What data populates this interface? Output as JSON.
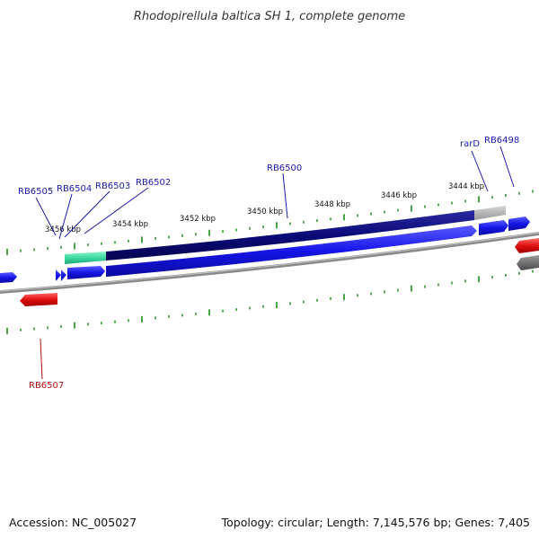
{
  "title": "Rhodopirellula baltica SH 1, complete genome",
  "footer": {
    "accession": "Accession: NC_005027",
    "summary": "Topology: circular; Length: 7,145,576 bp; Genes: 7,405"
  },
  "scale_labels": [
    "3456 kbp",
    "3454 kbp",
    "3452 kbp",
    "3450 kbp",
    "3448 kbp",
    "3446 kbp",
    "3444 kbp"
  ],
  "gene_labels": {
    "rb6505": "RB6505",
    "rb6504": "RB6504",
    "rb6503": "RB6503",
    "rb6502": "RB6502",
    "rb6500": "RB6500",
    "rard": "rarD",
    "rb6498": "RB6498",
    "rb6507": "RB6507"
  },
  "colors": {
    "forward_gene": "#1515e8",
    "reverse_gene": "#e01010",
    "highlight_dark": "#0a0a78",
    "highlight_teal": "#3cd9a0",
    "highlight_gray": "#b4b4b4",
    "backbone": "#8a8a8a",
    "tick": "#1a8a1a",
    "forward_label": "#1a1aa8",
    "reverse_label": "#b01010"
  }
}
